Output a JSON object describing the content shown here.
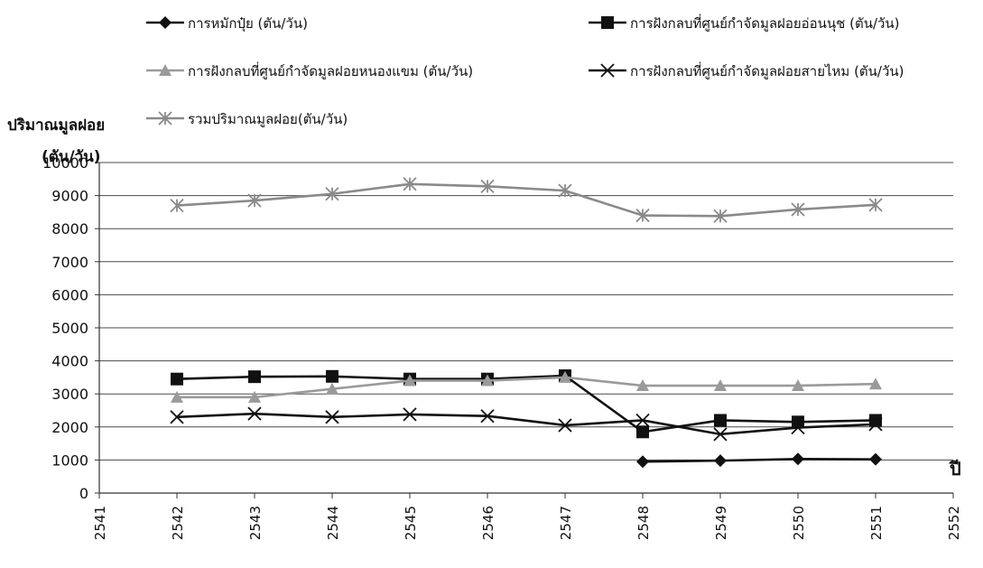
{
  "chart_data": {
    "type": "line",
    "ylabel_line1": "ปริมาณมูลฝอย",
    "ylabel_line2": "(ตัน/วัน)",
    "xlabel": "ปี",
    "x": [
      2541,
      2542,
      2543,
      2544,
      2545,
      2546,
      2547,
      2548,
      2549,
      2550,
      2551,
      2552
    ],
    "xlim": [
      2541,
      2552
    ],
    "ylim": [
      0,
      10000
    ],
    "yticks": [
      0,
      1000,
      2000,
      3000,
      4000,
      5000,
      6000,
      7000,
      8000,
      9000,
      10000
    ],
    "grid": true,
    "legend_position": "top",
    "series": [
      {
        "name": "การหมักปุ๋ย (ตัน/วัน)",
        "marker": "diamond",
        "color": "#111111",
        "points": [
          [
            2548,
            950
          ],
          [
            2549,
            980
          ],
          [
            2550,
            1030
          ],
          [
            2551,
            1020
          ]
        ]
      },
      {
        "name": "การฝังกลบที่ศูนย์กำจัดมูลฝอยอ่อนนุช (ตัน/วัน)",
        "marker": "square",
        "color": "#111111",
        "points": [
          [
            2542,
            3450
          ],
          [
            2543,
            3520
          ],
          [
            2544,
            3530
          ],
          [
            2545,
            3450
          ],
          [
            2546,
            3450
          ],
          [
            2547,
            3550
          ],
          [
            2548,
            1850
          ],
          [
            2549,
            2200
          ],
          [
            2550,
            2150
          ],
          [
            2551,
            2200
          ]
        ]
      },
      {
        "name": "การฝังกลบที่ศูนย์กำจัดมูลฝอยหนองแขม (ตัน/วัน)",
        "marker": "triangle",
        "color": "#9a9a9a",
        "points": [
          [
            2542,
            2900
          ],
          [
            2543,
            2900
          ],
          [
            2544,
            3150
          ],
          [
            2545,
            3400
          ],
          [
            2546,
            3400
          ],
          [
            2547,
            3500
          ],
          [
            2548,
            3250
          ],
          [
            2549,
            3250
          ],
          [
            2550,
            3250
          ],
          [
            2551,
            3300
          ]
        ]
      },
      {
        "name": "การฝังกลบที่ศูนย์กำจัดมูลฝอยสายไหม (ตัน/วัน)",
        "marker": "x",
        "color": "#111111",
        "points": [
          [
            2542,
            2300
          ],
          [
            2543,
            2400
          ],
          [
            2544,
            2300
          ],
          [
            2545,
            2380
          ],
          [
            2546,
            2330
          ],
          [
            2547,
            2050
          ],
          [
            2548,
            2200
          ],
          [
            2549,
            1780
          ],
          [
            2550,
            1980
          ],
          [
            2551,
            2080
          ]
        ]
      },
      {
        "name": "รวมปริมาณมูลฝอย(ตัน/วัน)",
        "marker": "star",
        "color": "#8a8a8a",
        "points": [
          [
            2542,
            8700
          ],
          [
            2543,
            8850
          ],
          [
            2544,
            9050
          ],
          [
            2545,
            9350
          ],
          [
            2546,
            9280
          ],
          [
            2547,
            9150
          ],
          [
            2548,
            8400
          ],
          [
            2549,
            8380
          ],
          [
            2550,
            8580
          ],
          [
            2551,
            8720
          ]
        ]
      }
    ]
  }
}
